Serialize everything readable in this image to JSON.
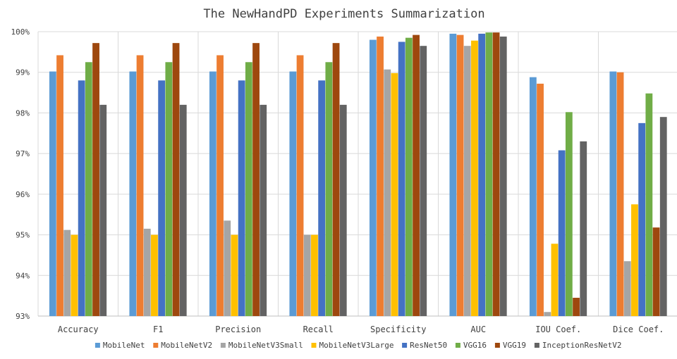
{
  "chart_data": {
    "type": "bar",
    "title": "The NewHandPD Experiments Summarization",
    "xlabel": "",
    "ylabel": "",
    "categories": [
      "Accuracy",
      "F1",
      "Precision",
      "Recall",
      "Specificity",
      "AUC",
      "IOU Coef.",
      "Dice Coef."
    ],
    "ylim": [
      93,
      100
    ],
    "yticks": [
      93,
      94,
      95,
      96,
      97,
      98,
      99,
      100
    ],
    "ytick_labels": [
      "93%",
      "94%",
      "95%",
      "96%",
      "97%",
      "98%",
      "99%",
      "100%"
    ],
    "grid": true,
    "legend": "bottom",
    "series": [
      {
        "name": "MobileNet",
        "color": "#5B9BD5",
        "values": [
          99.02,
          99.02,
          99.02,
          99.02,
          99.8,
          99.95,
          98.88,
          99.02
        ]
      },
      {
        "name": "MobileNetV2",
        "color": "#ED7D31",
        "values": [
          99.42,
          99.42,
          99.42,
          99.42,
          99.88,
          99.92,
          98.72,
          99.0
        ]
      },
      {
        "name": "MobileNetV3Small",
        "color": "#A5A5A5",
        "values": [
          95.12,
          95.15,
          95.35,
          95.0,
          99.07,
          99.65,
          93.1,
          94.35
        ]
      },
      {
        "name": "MobileNetV3Large",
        "color": "#FFC000",
        "values": [
          95.0,
          95.0,
          95.0,
          95.0,
          98.98,
          99.78,
          94.78,
          95.75
        ]
      },
      {
        "name": "ResNet50",
        "color": "#4472C4",
        "values": [
          98.8,
          98.8,
          98.8,
          98.8,
          99.75,
          99.95,
          97.08,
          97.75
        ]
      },
      {
        "name": "VGG16",
        "color": "#70AD47",
        "values": [
          99.25,
          99.25,
          99.25,
          99.25,
          99.85,
          99.98,
          98.02,
          98.48
        ]
      },
      {
        "name": "VGG19",
        "color": "#9E480E",
        "values": [
          99.72,
          99.72,
          99.72,
          99.72,
          99.92,
          99.98,
          93.45,
          95.18
        ]
      },
      {
        "name": "InceptionResNetV2",
        "color": "#636363",
        "values": [
          98.2,
          98.2,
          98.2,
          98.2,
          99.65,
          99.88,
          97.3,
          97.9
        ]
      }
    ]
  }
}
